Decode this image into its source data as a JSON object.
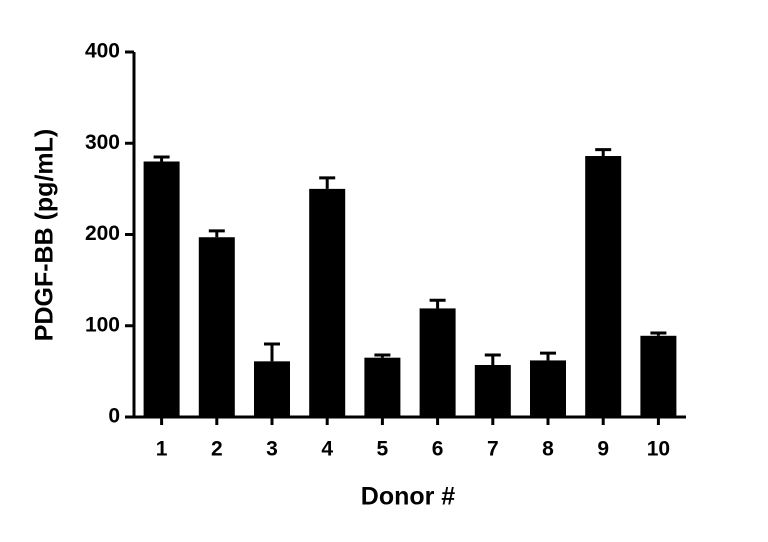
{
  "chart_data": {
    "type": "bar",
    "y_label": "PDGF-BB (pg/mL)",
    "x_label": "Donor #",
    "categories": [
      "1",
      "2",
      "3",
      "4",
      "5",
      "6",
      "7",
      "8",
      "9",
      "10"
    ],
    "values": [
      280,
      197,
      61,
      250,
      65,
      119,
      57,
      62,
      286,
      89
    ],
    "errors": [
      5,
      7,
      19,
      12,
      3,
      9,
      11,
      8,
      7,
      3
    ],
    "color": "#000000",
    "ylim": [
      0,
      400
    ],
    "yticks": [
      0,
      100,
      200,
      300,
      400
    ],
    "grid": false
  }
}
